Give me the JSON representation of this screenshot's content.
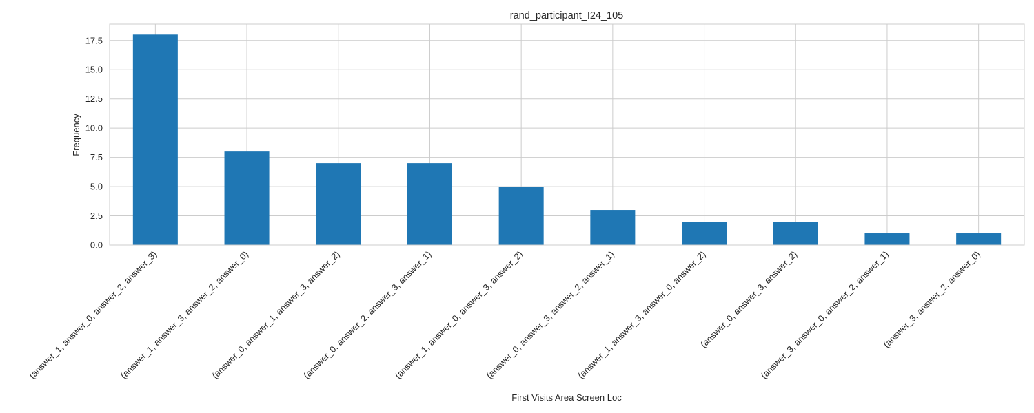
{
  "chart_data": {
    "type": "bar",
    "title": "rand_participant_I24_105",
    "xlabel": "First Visits Area Screen Loc",
    "ylabel": "Frequency",
    "ylim": [
      0,
      18.9
    ],
    "yticks": [
      0.0,
      2.5,
      5.0,
      7.5,
      10.0,
      12.5,
      15.0,
      17.5
    ],
    "ytick_labels": [
      "0.0",
      "2.5",
      "5.0",
      "7.5",
      "10.0",
      "12.5",
      "15.0",
      "17.5"
    ],
    "grid": true,
    "bar_color": "#1f77b4",
    "grid_color": "#cccccc",
    "categories": [
      "(answer_1, answer_0, answer_2, answer_3)",
      "(answer_1, answer_3, answer_2, answer_0)",
      "(answer_0, answer_1, answer_3, answer_2)",
      "(answer_0, answer_2, answer_3, answer_1)",
      "(answer_1, answer_0, answer_3, answer_2)",
      "(answer_0, answer_3, answer_2, answer_1)",
      "(answer_1, answer_3, answer_0, answer_2)",
      "(answer_0, answer_3, answer_2)",
      "(answer_3, answer_0, answer_2, answer_1)",
      "(answer_3, answer_2, answer_0)"
    ],
    "values": [
      18,
      8,
      7,
      7,
      5,
      3,
      2,
      2,
      1,
      1
    ]
  }
}
